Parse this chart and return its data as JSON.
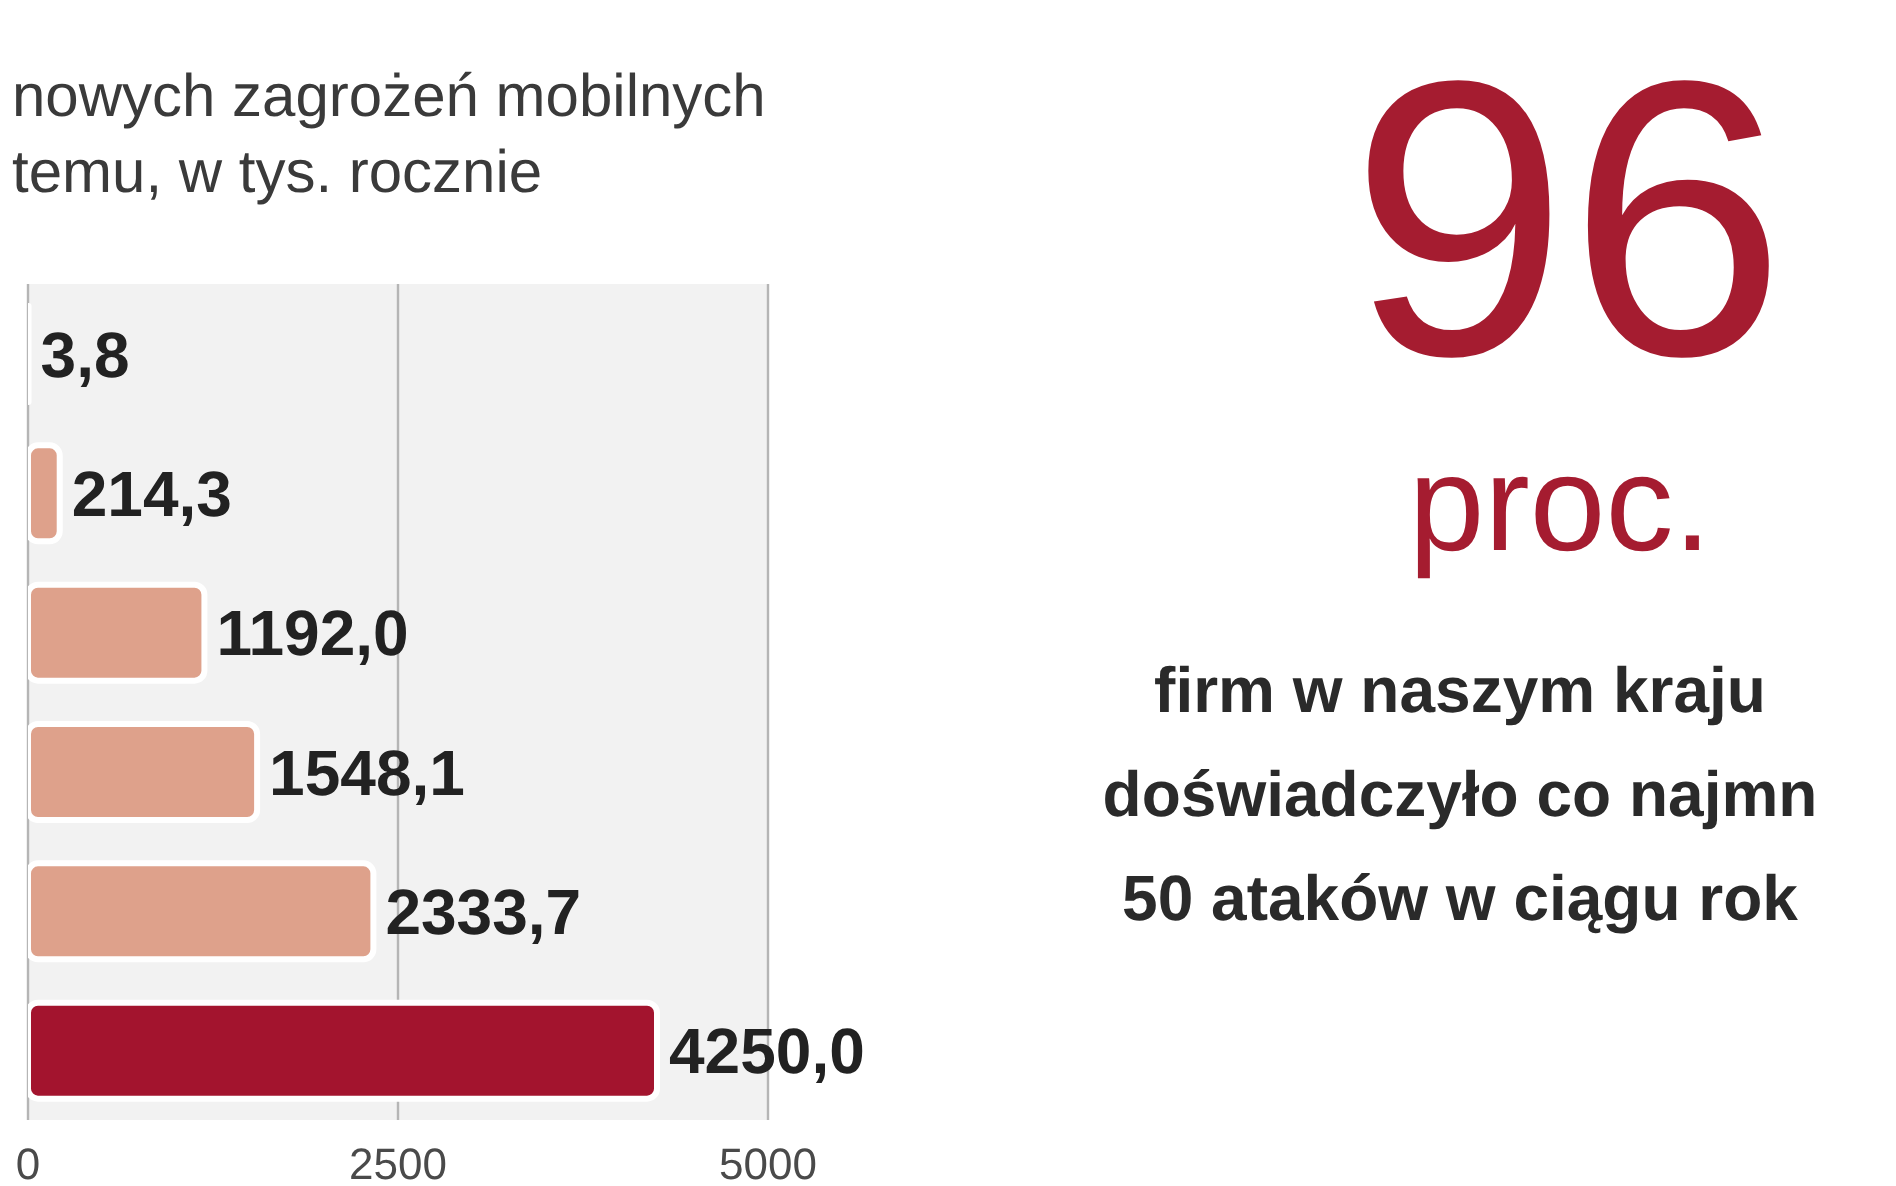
{
  "chart_data": [
    {
      "type": "bar",
      "title": "nowych zagrożeń mobilnych",
      "subtitle": "temu, w tys. rocznie",
      "orientation": "horizontal",
      "categories": [
        null,
        null,
        null,
        null,
        null,
        null
      ],
      "values": [
        3.8,
        214.3,
        1192.0,
        1548.1,
        2333.7,
        4250.0
      ],
      "colors": [
        "#dea18b",
        "#dea18b",
        "#dea18b",
        "#dea18b",
        "#dea18b",
        "#a3142e"
      ],
      "value_labels": [
        "3,8",
        "214,3",
        "1192,0",
        "1548,1",
        "2333,7",
        "4250,0"
      ],
      "xlim": [
        0,
        5000
      ],
      "xticks": [
        0,
        2500,
        5000
      ],
      "grid": "x",
      "tick_labels": "x"
    },
    {
      "type": "other",
      "title": "96",
      "subtitle": "proc.",
      "color": "#a51c30",
      "annotations": [
        "firm w naszym kraju",
        "doświadczyło co najmn",
        "50 ataków w ciągu rok"
      ]
    }
  ]
}
